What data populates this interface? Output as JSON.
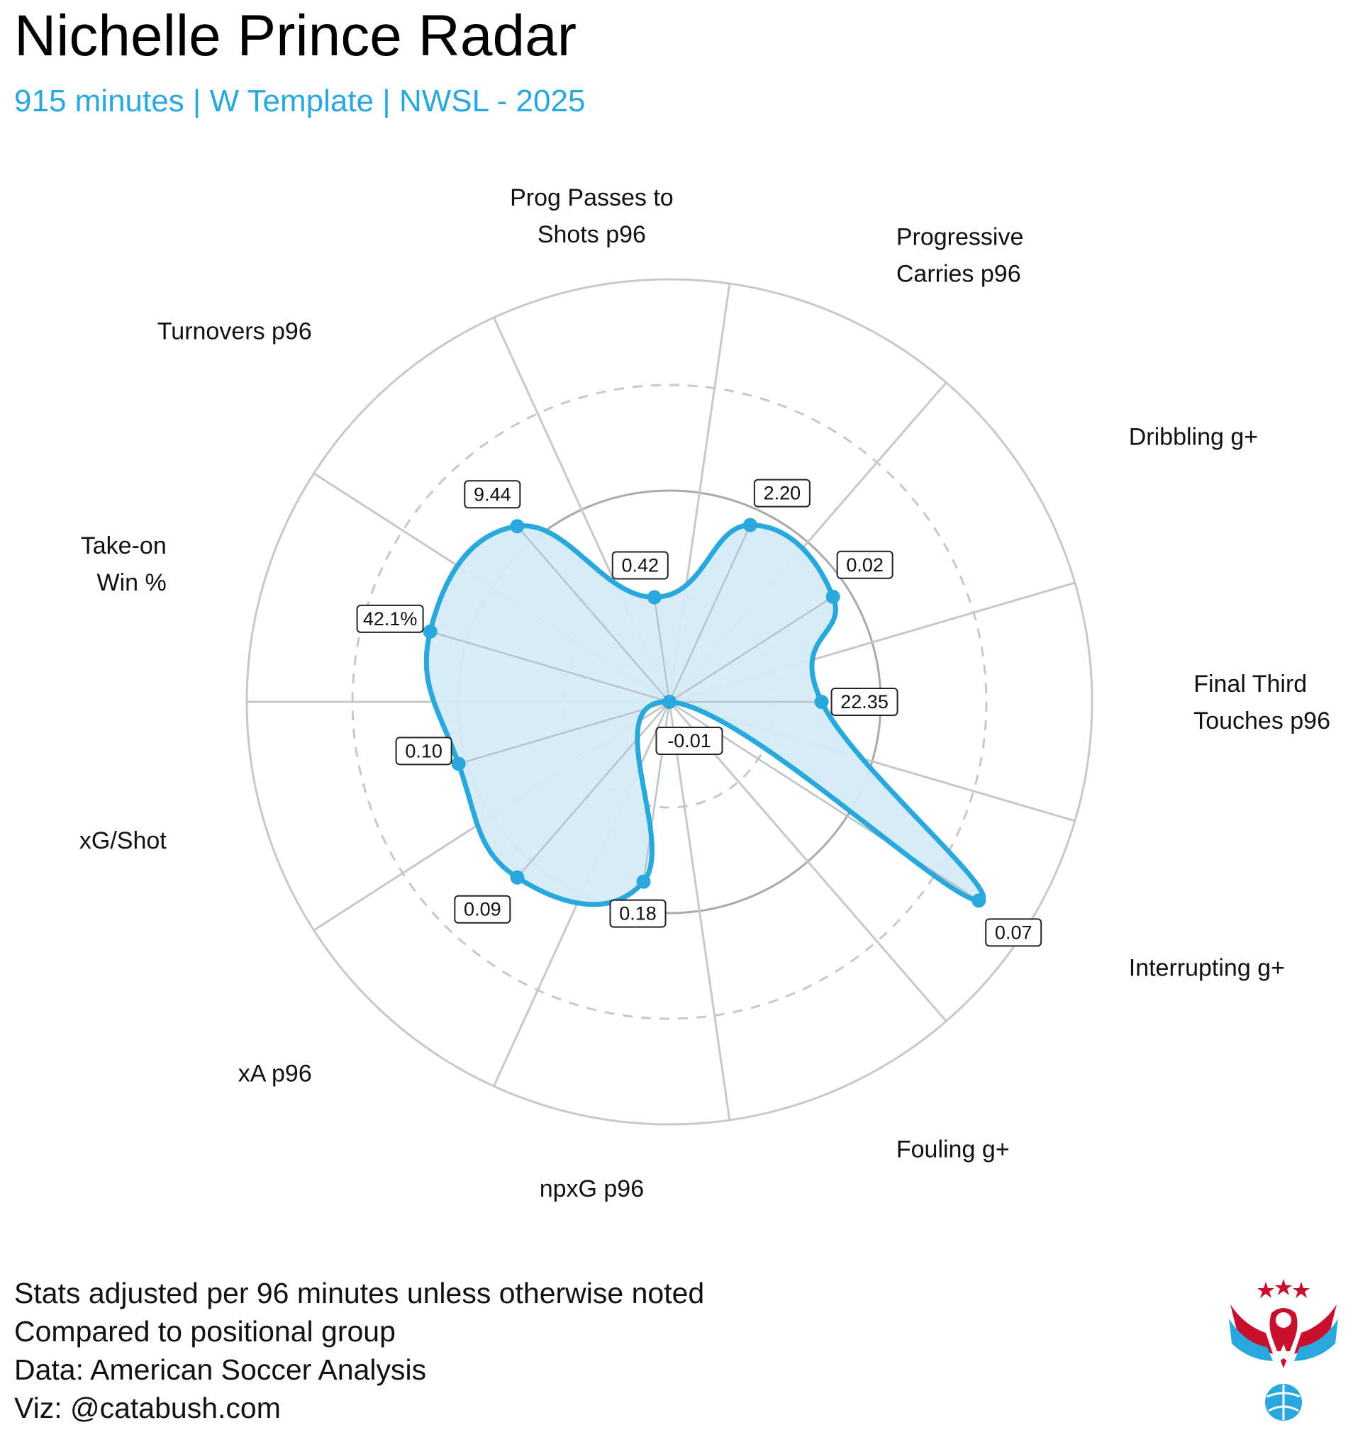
{
  "title": "Nichelle Prince Radar",
  "subtitle": "915 minutes | W Template | NWSL - 2025",
  "footer": {
    "lines": [
      "Stats adjusted per 96 minutes unless otherwise noted",
      "Compared to positional group",
      "Data: American Soccer Analysis",
      "Viz: @catabush.com"
    ]
  },
  "colors": {
    "accent": "#29a8dd",
    "fill": "#d4ecf8",
    "grid": "#c8c8c8"
  },
  "logo": {
    "icon": "eagle-soccer-ball-logo"
  },
  "chart_data": {
    "type": "radar",
    "rlim": [
      0,
      1
    ],
    "grid": true,
    "axes": [
      {
        "label": [
          "Final Third",
          "Touches p96"
        ],
        "value": "22.35",
        "r": 0.36
      },
      {
        "label": [
          "Dribbling g+"
        ],
        "value": "0.02",
        "r": 0.46
      },
      {
        "label": [
          "Progressive",
          "Carries p96"
        ],
        "value": "2.20",
        "r": 0.46
      },
      {
        "label": [
          "Prog Passes to",
          "Shots p96"
        ],
        "value": "0.42",
        "r": 0.25
      },
      {
        "label": [
          "Turnovers p96"
        ],
        "value": "9.44",
        "r": 0.55
      },
      {
        "label": [
          "Take-on",
          "Win %"
        ],
        "value": "42.1%",
        "r": 0.59
      },
      {
        "label": [
          "xG/Shot"
        ],
        "value": "0.10",
        "r": 0.52
      },
      {
        "label": [
          "xA p96"
        ],
        "value": "0.09",
        "r": 0.55
      },
      {
        "label": [
          "npxG p96"
        ],
        "value": "0.18",
        "r": 0.43
      },
      {
        "label": [
          "Fouling g+"
        ],
        "value": "-0.01",
        "r": 0.0
      },
      {
        "label": [
          "Interrupting g+"
        ],
        "value": "0.07",
        "r": 0.87
      }
    ]
  }
}
